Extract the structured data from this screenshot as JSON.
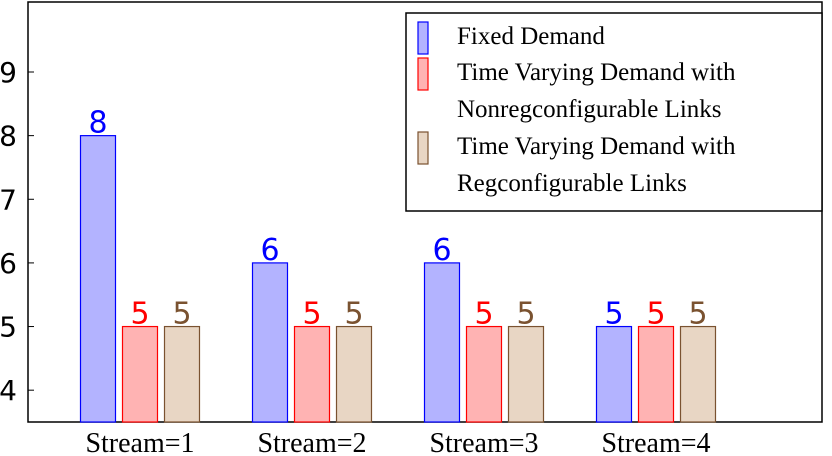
{
  "chart_data": {
    "type": "bar",
    "categories": [
      "Stream=1",
      "Stream=2",
      "Stream=3",
      "Stream=4"
    ],
    "series": [
      {
        "name": "Fixed Demand",
        "color": "#0000ff",
        "fill": "#b3b3ff",
        "values": [
          8,
          6,
          6,
          5
        ]
      },
      {
        "name": "Time Varying Demand with Nonregconfigurable Links",
        "color": "#ff0000",
        "fill": "#ffb3b3",
        "values": [
          5,
          5,
          5,
          5
        ]
      },
      {
        "name": "Time Varying Demand with Regconfigurable Links",
        "color": "#7a5230",
        "fill": "#e8d6c4",
        "values": [
          5,
          5,
          5,
          5
        ]
      }
    ],
    "ylim": [
      3.5,
      10.1
    ],
    "yticks": [
      4,
      5,
      6,
      7,
      8,
      9
    ],
    "legend": "top-right"
  }
}
